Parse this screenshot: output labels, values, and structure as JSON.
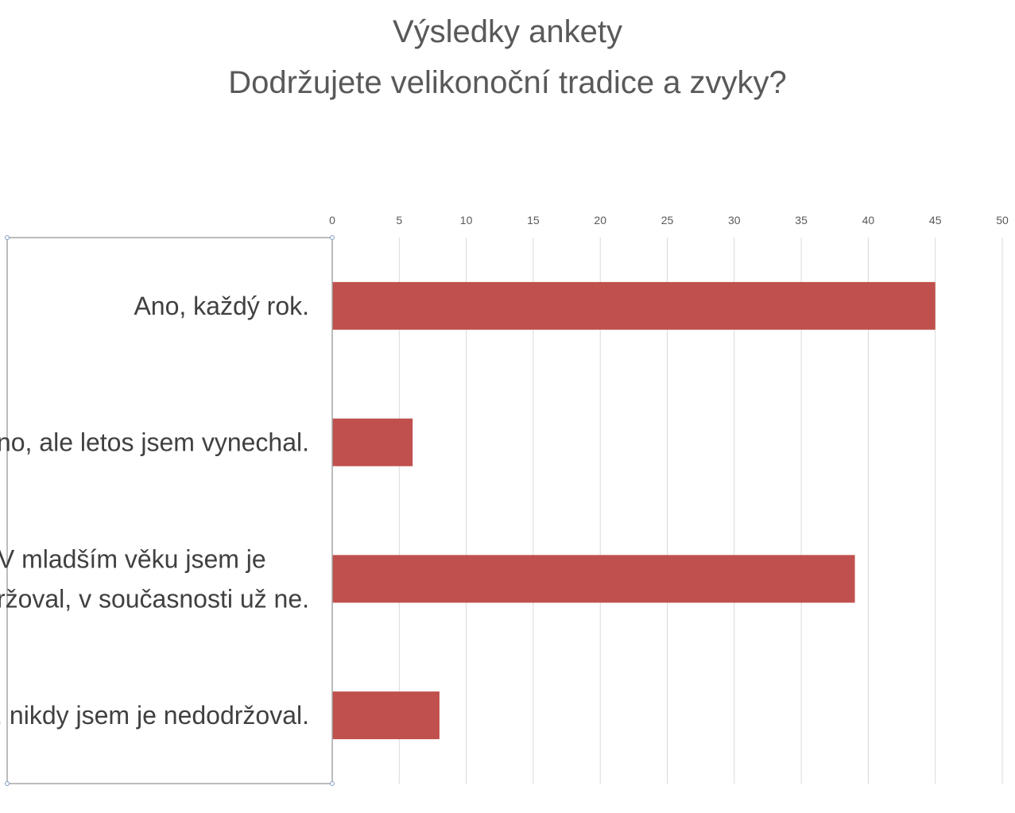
{
  "chart_data": {
    "type": "bar",
    "orientation": "horizontal",
    "title": "Výsledky ankety",
    "subtitle": "Dodržujete velikonoční tradice a zvyky?",
    "categories": [
      "Ano, každý rok.",
      "Ano, ale letos jsem vynechal.",
      "V mladším věku jsem je dodržoval, v současnosti už ne.",
      "Ne, nikdy jsem je nedodržoval."
    ],
    "category_lines": [
      [
        "Ano, každý rok."
      ],
      [
        "Ano, ale letos jsem vynechal."
      ],
      [
        "V mladším věku jsem je",
        "dodržoval, v současnosti už ne."
      ],
      [
        "Ne, nikdy jsem je nedodržoval."
      ]
    ],
    "values": [
      45,
      6,
      39,
      8
    ],
    "xlim": [
      0,
      50
    ],
    "x_ticks": [
      0,
      5,
      10,
      15,
      20,
      25,
      30,
      35,
      40,
      45,
      50
    ],
    "x_axis_position": "top",
    "grid": true,
    "bar_color": "#C0504D",
    "grid_color": "#D9D9D9",
    "label_box_color": "#A6A6A6"
  }
}
